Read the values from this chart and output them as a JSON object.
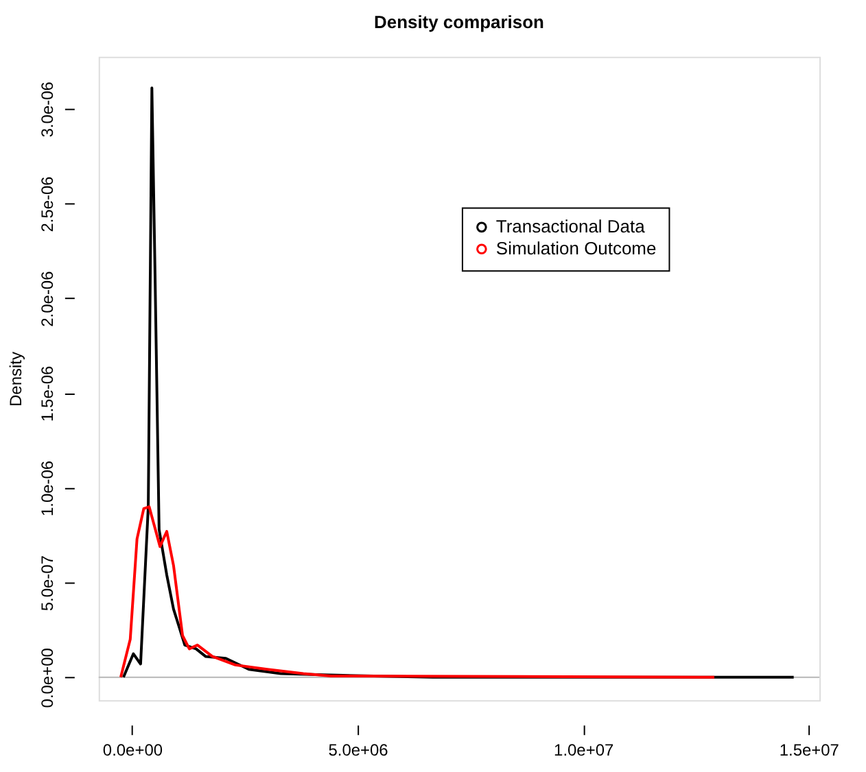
{
  "chart_data": {
    "type": "line",
    "title": "Density comparison",
    "ylabel": "Density",
    "series": [
      {
        "name": "Transactional Data",
        "color": "#000000",
        "x": [
          -190000,
          30000,
          190000,
          360000,
          440000,
          510000,
          600000,
          770000,
          920000,
          1170000,
          1420000,
          1630000,
          2080000,
          2590000,
          3300000,
          4370000,
          6670000,
          14670000
        ],
        "values": [
          0,
          1.24e-07,
          7e-08,
          9e-07,
          3.11e-06,
          2.13e-06,
          7.8e-07,
          5.4e-07,
          3.6e-07,
          1.7e-07,
          1.5e-07,
          1.1e-07,
          1e-07,
          4.2e-08,
          1.9e-08,
          1.2e-08,
          0,
          0
        ]
      },
      {
        "name": "Simulation Outcome",
        "color": "#ff0000",
        "x": [
          -250000,
          -40000,
          110000,
          260000,
          380000,
          620000,
          770000,
          920000,
          1120000,
          1270000,
          1450000,
          1780000,
          2290000,
          3000000,
          3800000,
          4410000,
          12910000
        ],
        "values": [
          0,
          2e-07,
          7.3e-07,
          8.9e-07,
          9e-07,
          6.9e-07,
          7.7e-07,
          5.9e-07,
          2.2e-07,
          1.5e-07,
          1.7e-07,
          1.1e-07,
          6.5e-08,
          4.2e-08,
          1.9e-08,
          7e-09,
          0
        ]
      }
    ],
    "xlim": [
      -740000,
      15240000
    ],
    "xticks": [
      {
        "value": 0,
        "label": "0.0e+00"
      },
      {
        "value": 5000000,
        "label": "5.0e+06"
      },
      {
        "value": 10000000,
        "label": "1.0e+07"
      },
      {
        "value": 15000000,
        "label": "1.5e+07"
      }
    ],
    "ylim": [
      -1.21e-07,
      3.275e-06
    ],
    "yticks": [
      {
        "value": 0,
        "label": "0.0e+00"
      },
      {
        "value": 5e-07,
        "label": "5.0e-07"
      },
      {
        "value": 1e-06,
        "label": "1.0e-06"
      },
      {
        "value": 1.5e-06,
        "label": "1.5e-06"
      },
      {
        "value": 2e-06,
        "label": "2.0e-06"
      },
      {
        "value": 2.5e-06,
        "label": "2.5e-06"
      },
      {
        "value": 3e-06,
        "label": "3.0e-06"
      }
    ],
    "ref_lines": [
      {
        "axis": "y",
        "value": 0,
        "color": "#bebebe"
      }
    ],
    "legend": "top right",
    "grid": false,
    "line_style": "solid",
    "marker": "none"
  }
}
